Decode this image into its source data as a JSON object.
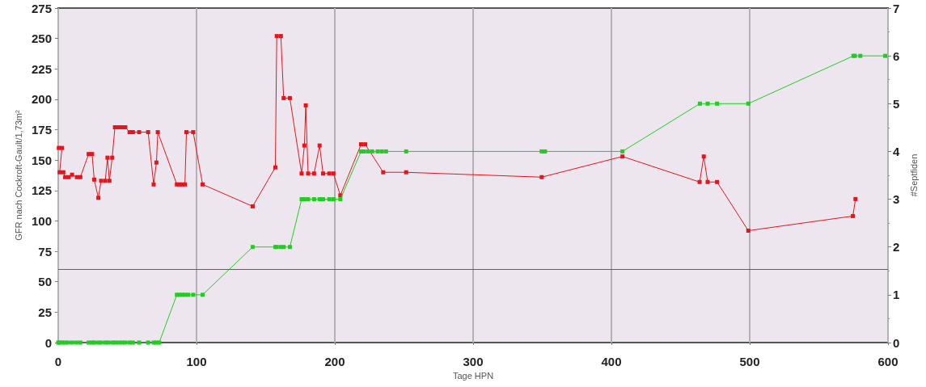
{
  "chart_data": {
    "type": "line",
    "xlabel": "Tage HPN",
    "ylabel": "GFR nach Cockroft-Gault/1,73m²",
    "y2label": "#Septfiden",
    "xlim": [
      0,
      600
    ],
    "xticks": [
      0,
      100,
      200,
      300,
      400,
      500,
      600
    ],
    "ylim": [
      0,
      275
    ],
    "yticks": [
      0,
      25,
      50,
      75,
      100,
      125,
      150,
      175,
      200,
      225,
      250,
      275
    ],
    "y2lim": [
      0,
      7
    ],
    "y2ticks": [
      0,
      1,
      2,
      3,
      4,
      5,
      6,
      7
    ],
    "grid": "x",
    "marker": "square",
    "line_style": "solid",
    "ref_lines": [
      {
        "axis": "y",
        "value": 60,
        "label": null,
        "color": "#5a50c8"
      }
    ],
    "series": [
      {
        "color": "#e8141c",
        "x": [
          0.4,
          2.7,
          1,
          3.7,
          5,
          7.6,
          10,
          13.5,
          16,
          22,
          24.5,
          26,
          29,
          31,
          34,
          35.6,
          37,
          39,
          41,
          43.5,
          46,
          48.5,
          51.6,
          54,
          58.5,
          65,
          69,
          71,
          72,
          85.8,
          87.7,
          89.7,
          91.6,
          92.7,
          97.6,
          104.4,
          140.6,
          157,
          158,
          161,
          163,
          167.5,
          176,
          178,
          179,
          180.7,
          185,
          189,
          191.5,
          196,
          199,
          204,
          219,
          222,
          235,
          251.6,
          349.6,
          408,
          463.8,
          466.8,
          469.6,
          476.4,
          499,
          574.6,
          576.5
        ],
        "values": [
          160,
          160,
          140,
          140,
          136,
          136,
          138,
          136,
          136,
          155,
          155,
          134,
          119,
          133,
          133,
          152,
          133,
          152,
          177,
          177,
          177,
          177,
          173,
          173,
          173,
          173,
          130,
          148,
          173,
          130,
          130,
          130,
          130,
          173,
          173,
          130,
          112,
          144,
          252,
          252,
          201,
          201,
          139,
          162,
          195,
          139,
          139,
          162,
          139,
          139,
          139,
          121,
          163,
          163,
          140,
          140,
          136,
          153,
          132,
          153,
          132,
          132,
          92,
          104,
          118
        ]
      },
      {
        "color": "#22cc22",
        "axis": "y2",
        "x": [
          0,
          1,
          3,
          5,
          7,
          10,
          13,
          16,
          22,
          24.5,
          26,
          29,
          31,
          34,
          36,
          39,
          41,
          43.5,
          46,
          48.5,
          51.6,
          54,
          58.5,
          65,
          69,
          71,
          73,
          85.8,
          87.7,
          89.7,
          91.6,
          94,
          97.6,
          104.4,
          140.6,
          157,
          158,
          161,
          163,
          167.5,
          176,
          178,
          180.7,
          185,
          189,
          191.5,
          196,
          199,
          204,
          219,
          221,
          224,
          227,
          231,
          234,
          237,
          251.6,
          349.6,
          352,
          408,
          464,
          469.6,
          476.4,
          499,
          575,
          576,
          580,
          598
        ],
        "values": [
          0,
          0,
          0,
          0,
          0,
          0,
          0,
          0,
          0,
          0,
          0,
          0,
          0,
          0,
          0,
          0,
          0,
          0,
          0,
          0,
          0,
          0,
          0,
          0,
          0,
          0,
          0,
          1,
          1,
          1,
          1,
          1,
          1,
          1,
          2,
          2,
          2,
          2,
          2,
          2,
          3,
          3,
          3,
          3,
          3,
          3,
          3,
          3,
          3,
          4,
          4,
          4,
          4,
          4,
          4,
          4,
          4,
          4,
          4,
          4,
          5,
          5,
          5,
          5,
          6,
          6,
          6,
          6
        ]
      }
    ]
  }
}
